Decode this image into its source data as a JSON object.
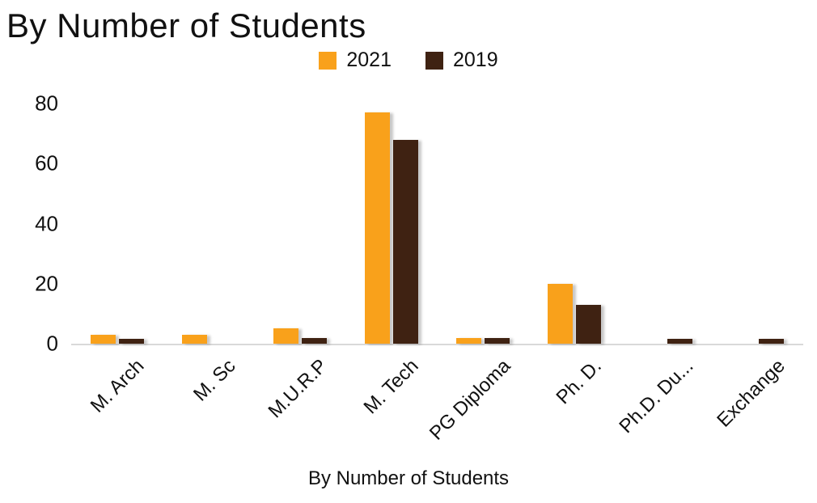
{
  "title": "By Number of Students",
  "chart_data": {
    "type": "bar",
    "title": "By Number of Students",
    "xlabel": "By Number of Students",
    "ylabel": "",
    "ylim": [
      0,
      80
    ],
    "y_ticks": [
      0,
      20,
      40,
      60,
      80
    ],
    "grid": false,
    "legend_position": "top",
    "categories": [
      "M. Arch",
      "M. Sc",
      "M.U.R.P",
      "M. Tech",
      "PG Diploma",
      "Ph. D.",
      "Ph.D. Du...",
      "Exchange"
    ],
    "series": [
      {
        "name": "2021",
        "color": "#F9A11B",
        "values": [
          3,
          3,
          5,
          77,
          2,
          20,
          0,
          0
        ]
      },
      {
        "name": "2019",
        "color": "#3F2212",
        "values": [
          1.5,
          0,
          2,
          68,
          2,
          13,
          1.5,
          1.5
        ]
      }
    ]
  }
}
